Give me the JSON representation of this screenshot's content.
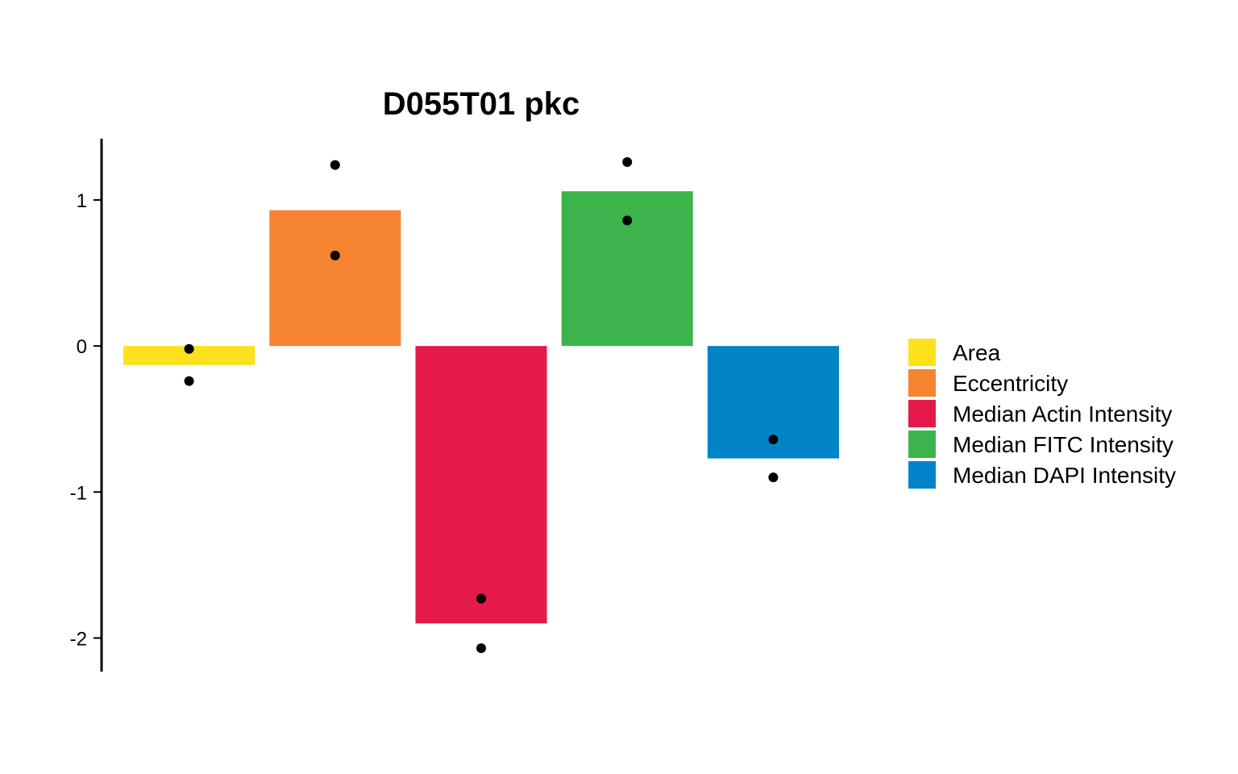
{
  "chart_data": {
    "type": "bar",
    "title": "D055T01 pkc",
    "xlabel": "",
    "ylabel": "",
    "categories": [
      "Area",
      "Eccentricity",
      "Median Actin Intensity",
      "Median FITC Intensity",
      "Median DAPI Intensity"
    ],
    "values": [
      -0.13,
      0.93,
      -1.9,
      1.06,
      -0.77
    ],
    "points": [
      [
        -0.02,
        -0.24
      ],
      [
        1.24,
        0.62
      ],
      [
        -1.73,
        -2.07
      ],
      [
        1.26,
        0.86
      ],
      [
        -0.64,
        -0.9
      ]
    ],
    "colors": [
      "#FDE11C",
      "#F58431",
      "#E41A4A",
      "#3DB44B",
      "#0084C8"
    ],
    "yticks": [
      1,
      0,
      -1,
      -2
    ],
    "ytick_labels": [
      "1",
      "0",
      "-1",
      "-2"
    ],
    "ylim": [
      -2.23,
      1.42
    ],
    "grid": false,
    "legend": "right"
  }
}
